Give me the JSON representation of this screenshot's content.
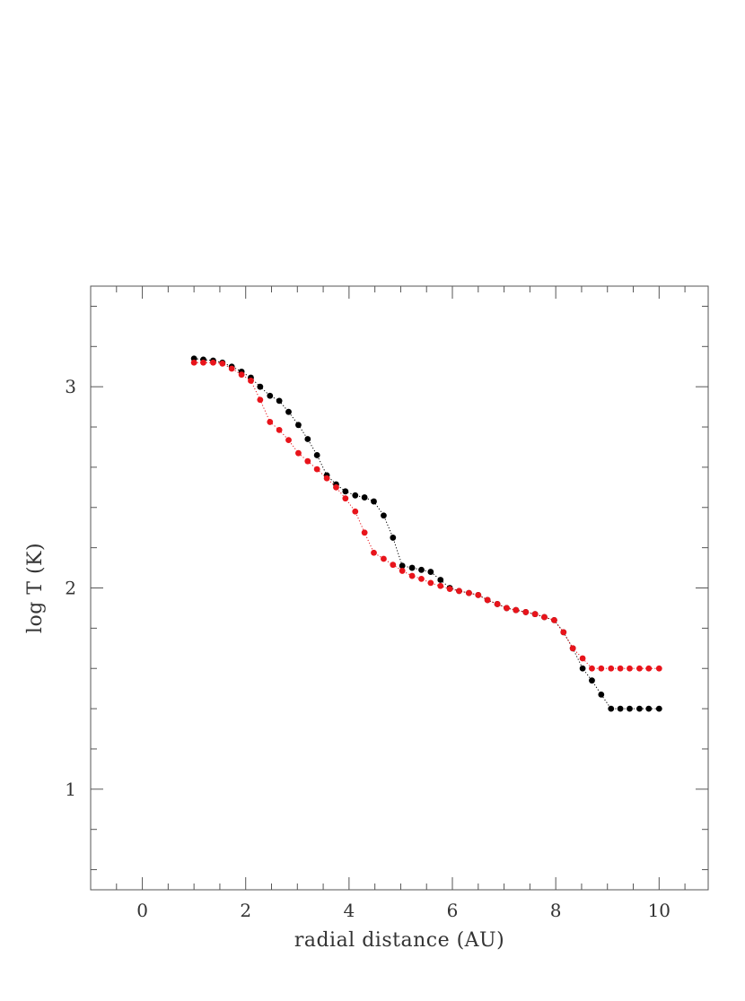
{
  "chart_data": {
    "type": "scatter",
    "xlabel": "radial distance (AU)",
    "ylabel": "log T (K)",
    "xlim": [
      -1,
      10.95
    ],
    "ylim": [
      0.5,
      3.5
    ],
    "x_major_ticks": [
      0,
      2,
      4,
      6,
      8,
      10
    ],
    "x_tick_labels": [
      "0",
      "2",
      "4",
      "6",
      "8",
      "10"
    ],
    "x_minor_step": 0.5,
    "y_major_ticks": [
      1,
      2,
      3
    ],
    "y_tick_labels": [
      "1",
      "2",
      "3"
    ],
    "y_minor_step": 0.2,
    "grid": false,
    "series": [
      {
        "color": "#000000",
        "points": [
          [
            1.0,
            3.14
          ],
          [
            1.18,
            3.135
          ],
          [
            1.37,
            3.13
          ],
          [
            1.55,
            3.12
          ],
          [
            1.73,
            3.1
          ],
          [
            1.92,
            3.075
          ],
          [
            2.1,
            3.045
          ],
          [
            2.28,
            3.0
          ],
          [
            2.47,
            2.955
          ],
          [
            2.65,
            2.93
          ],
          [
            2.83,
            2.875
          ],
          [
            3.02,
            2.81
          ],
          [
            3.2,
            2.74
          ],
          [
            3.38,
            2.66
          ],
          [
            3.57,
            2.56
          ],
          [
            3.75,
            2.515
          ],
          [
            3.93,
            2.48
          ],
          [
            4.12,
            2.46
          ],
          [
            4.3,
            2.45
          ],
          [
            4.48,
            2.43
          ],
          [
            4.67,
            2.36
          ],
          [
            4.85,
            2.25
          ],
          [
            5.03,
            2.11
          ],
          [
            5.22,
            2.1
          ],
          [
            5.4,
            2.09
          ],
          [
            5.58,
            2.08
          ],
          [
            5.77,
            2.04
          ],
          [
            5.95,
            2.0
          ],
          [
            6.13,
            1.985
          ],
          [
            6.32,
            1.975
          ],
          [
            6.5,
            1.965
          ],
          [
            6.68,
            1.94
          ],
          [
            6.87,
            1.92
          ],
          [
            7.05,
            1.9
          ],
          [
            7.23,
            1.89
          ],
          [
            7.42,
            1.88
          ],
          [
            7.6,
            1.87
          ],
          [
            7.78,
            1.855
          ],
          [
            7.97,
            1.84
          ],
          [
            8.15,
            1.78
          ],
          [
            8.33,
            1.7
          ],
          [
            8.52,
            1.6
          ],
          [
            8.7,
            1.54
          ],
          [
            8.88,
            1.47
          ],
          [
            9.07,
            1.4
          ],
          [
            9.25,
            1.4
          ],
          [
            9.43,
            1.4
          ],
          [
            9.62,
            1.4
          ],
          [
            9.8,
            1.4
          ],
          [
            10.0,
            1.4
          ]
        ]
      },
      {
        "color": "#e8141b",
        "points": [
          [
            1.0,
            3.12
          ],
          [
            1.18,
            3.12
          ],
          [
            1.37,
            3.12
          ],
          [
            1.55,
            3.115
          ],
          [
            1.73,
            3.09
          ],
          [
            1.92,
            3.06
          ],
          [
            2.1,
            3.03
          ],
          [
            2.28,
            2.935
          ],
          [
            2.47,
            2.825
          ],
          [
            2.65,
            2.785
          ],
          [
            2.83,
            2.735
          ],
          [
            3.02,
            2.67
          ],
          [
            3.2,
            2.63
          ],
          [
            3.38,
            2.59
          ],
          [
            3.57,
            2.545
          ],
          [
            3.75,
            2.5
          ],
          [
            3.93,
            2.445
          ],
          [
            4.12,
            2.38
          ],
          [
            4.3,
            2.275
          ],
          [
            4.48,
            2.175
          ],
          [
            4.67,
            2.145
          ],
          [
            4.85,
            2.115
          ],
          [
            5.03,
            2.085
          ],
          [
            5.22,
            2.06
          ],
          [
            5.4,
            2.045
          ],
          [
            5.58,
            2.025
          ],
          [
            5.77,
            2.01
          ],
          [
            5.95,
            1.995
          ],
          [
            6.13,
            1.985
          ],
          [
            6.32,
            1.975
          ],
          [
            6.5,
            1.965
          ],
          [
            6.68,
            1.94
          ],
          [
            6.87,
            1.92
          ],
          [
            7.05,
            1.9
          ],
          [
            7.23,
            1.89
          ],
          [
            7.42,
            1.88
          ],
          [
            7.6,
            1.87
          ],
          [
            7.78,
            1.855
          ],
          [
            7.97,
            1.84
          ],
          [
            8.15,
            1.78
          ],
          [
            8.33,
            1.7
          ],
          [
            8.52,
            1.65
          ],
          [
            8.7,
            1.6
          ],
          [
            8.88,
            1.6
          ],
          [
            9.07,
            1.6
          ],
          [
            9.25,
            1.6
          ],
          [
            9.43,
            1.6
          ],
          [
            9.62,
            1.6
          ],
          [
            9.8,
            1.6
          ],
          [
            10.0,
            1.6
          ]
        ]
      }
    ]
  }
}
